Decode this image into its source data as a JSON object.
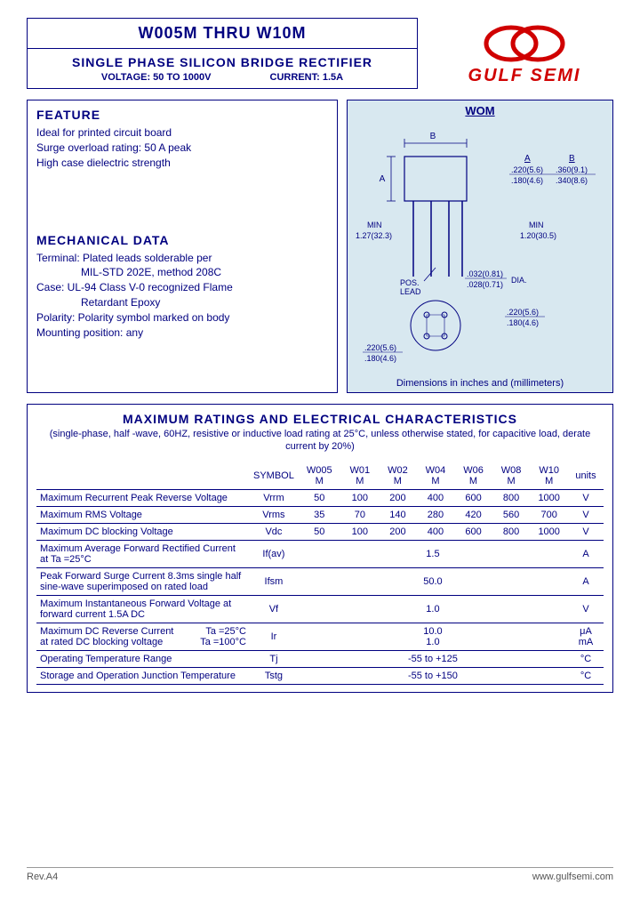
{
  "header": {
    "part_range": "W005M THRU W10M",
    "product_type": "SINGLE PHASE SILICON BRIDGE RECTIFIER",
    "voltage_label": "VOLTAGE: 50 TO 1000V",
    "current_label": "CURRENT: 1.5A"
  },
  "logo": {
    "brand": "GULF SEMI",
    "color": "#d00000"
  },
  "feature": {
    "heading": "FEATURE",
    "lines": [
      "Ideal for printed circuit board",
      "Surge overload rating: 50 A peak",
      "High case dielectric strength"
    ]
  },
  "mechanical": {
    "heading": "MECHANICAL DATA",
    "terminal_l1": "Terminal: Plated leads solderable per",
    "terminal_l2": "MIL-STD 202E, method 208C",
    "case_l1": "Case: UL-94 Class V-0 recognized Flame",
    "case_l2": "Retardant Epoxy",
    "polarity": "Polarity: Polarity symbol marked on body",
    "mounting": "Mounting position: any"
  },
  "diagram": {
    "title": "WOM",
    "caption": "Dimensions in inches and (millimeters)",
    "labels": {
      "b_top": "B",
      "a_side": "A",
      "col_a": "A",
      "col_b": "B",
      "a_top": ".220(5.6)",
      "b_top_val": ".360(9.1)",
      "a_bot": ".180(4.6)",
      "b_bot_val": ".340(8.6)",
      "min_left": "MIN",
      "min_left_val": "1.27(32.3)",
      "min_right": "MIN",
      "min_right_val": "1.20(30.5)",
      "pos_lead": "POS. LEAD",
      "dia_top": ".032(0.81)",
      "dia_bot": ".028(0.71)",
      "dia_label": "DIA.",
      "bot_right_top": ".220(5.6)",
      "bot_right_bot": ".180(4.6)",
      "bot_left_top": ".220(5.6)",
      "bot_left_bot": ".180(4.6)"
    }
  },
  "ratings": {
    "title": "MAXIMUM RATINGS AND ELECTRICAL CHARACTERISTICS",
    "subtitle": "(single-phase, half -wave, 60HZ, resistive or inductive load rating at 25°C, unless otherwise stated, for capacitive load, derate current by 20%)",
    "columns": {
      "symbol": "SYMBOL",
      "parts": [
        "W005 M",
        "W01 M",
        "W02 M",
        "W04 M",
        "W06 M",
        "W08 M",
        "W10 M"
      ],
      "units": "units"
    },
    "rows": [
      {
        "param": "Maximum Recurrent Peak Reverse Voltage",
        "sym": "Vrrm",
        "vals": [
          "50",
          "100",
          "200",
          "400",
          "600",
          "800",
          "1000"
        ],
        "unit": "V"
      },
      {
        "param": "Maximum RMS Voltage",
        "sym": "Vrms",
        "vals": [
          "35",
          "70",
          "140",
          "280",
          "420",
          "560",
          "700"
        ],
        "unit": "V"
      },
      {
        "param": "Maximum DC blocking Voltage",
        "sym": "Vdc",
        "vals": [
          "50",
          "100",
          "200",
          "400",
          "600",
          "800",
          "1000"
        ],
        "unit": "V"
      },
      {
        "param": "Maximum Average Forward Rectified Current at Ta =25°C",
        "sym": "If(av)",
        "span": "1.5",
        "unit": "A"
      },
      {
        "param": "Peak Forward Surge Current 8.3ms single half sine-wave superimposed on rated load",
        "sym": "Ifsm",
        "span": "50.0",
        "unit": "A"
      },
      {
        "param": "Maximum Instantaneous Forward Voltage at forward current 1.5A DC",
        "sym": "Vf",
        "span": "1.0",
        "unit": "V"
      }
    ],
    "dc_reverse": {
      "param1": "Maximum DC Reverse Current",
      "param2": "at rated DC blocking voltage",
      "t1": "Ta =25°C",
      "t2": "Ta =100°C",
      "sym": "Ir",
      "v1": "10.0",
      "v2": "1.0",
      "u1": "μA",
      "u2": "mA"
    },
    "temp_rows": [
      {
        "param": "Operating Temperature Range",
        "sym": "Tj",
        "span": "-55 to +125",
        "unit": "°C"
      },
      {
        "param": "Storage and Operation Junction Temperature",
        "sym": "Tstg",
        "span": "-55 to +150",
        "unit": "°C"
      }
    ]
  },
  "footer": {
    "rev": "Rev.A4",
    "url": "www.gulfsemi.com"
  }
}
